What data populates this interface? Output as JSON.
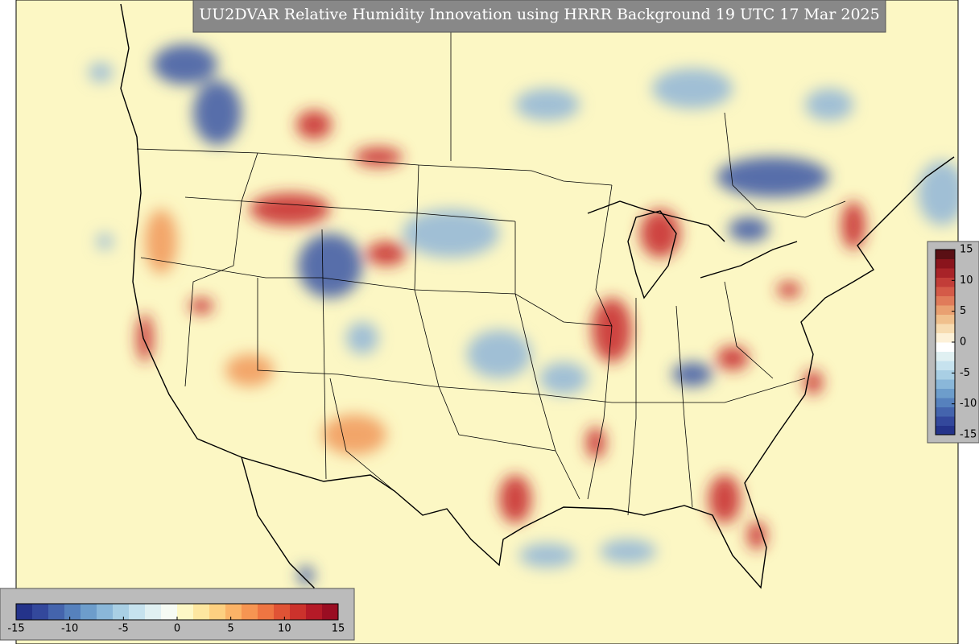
{
  "title": "UU2DVAR Relative Humidity Innovation using HRRR Background 19 UTC 17 Mar 2025",
  "colorbars": [
    {
      "orientation": "horizontal",
      "lim": [
        -15,
        15
      ],
      "ticks": [
        -15,
        -10,
        -5,
        0,
        5,
        10,
        15
      ],
      "colors": [
        "#24338a",
        "#33489c",
        "#4464ad",
        "#5681bd",
        "#6d9dcb",
        "#8ab7d9",
        "#a9cfe4",
        "#c6e2ee",
        "#e0f0f2",
        "#f6fbf4",
        "#fdf8c6",
        "#fde7a0",
        "#fdd081",
        "#fbb367",
        "#f69552",
        "#ee7542",
        "#e05335",
        "#cc322c",
        "#b51a27",
        "#9a0d22"
      ]
    },
    {
      "orientation": "vertical",
      "lim": [
        -15,
        15
      ],
      "ticks": [
        15,
        10,
        5,
        0,
        -5,
        -10,
        -15
      ],
      "colors": [
        "#24338a",
        "#33489c",
        "#4464ad",
        "#5681bd",
        "#6d9dcb",
        "#8ab7d9",
        "#a9cfe4",
        "#c6e2ee",
        "#e0f0f2",
        "#ffffff",
        "#fdf1d8",
        "#f7dcb2",
        "#f0c08d",
        "#e9a071",
        "#e07b5a",
        "#d45a48",
        "#c23d38",
        "#a82328",
        "#8a141c",
        "#5a0f14"
      ]
    }
  ]
}
